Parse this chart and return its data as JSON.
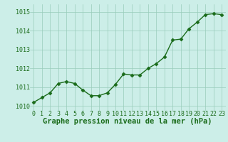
{
  "x": [
    0,
    1,
    2,
    3,
    4,
    5,
    6,
    7,
    8,
    9,
    10,
    11,
    12,
    13,
    14,
    15,
    16,
    17,
    18,
    19,
    20,
    21,
    22,
    23
  ],
  "y": [
    1010.2,
    1010.45,
    1010.7,
    1011.2,
    1011.3,
    1011.2,
    1010.85,
    1010.55,
    1010.55,
    1010.7,
    1011.15,
    1011.7,
    1011.65,
    1011.65,
    1012.0,
    1012.25,
    1012.6,
    1013.5,
    1013.55,
    1014.1,
    1014.45,
    1014.85,
    1014.9,
    1014.85
  ],
  "xlabel": "Graphe pression niveau de la mer (hPa)",
  "ylim": [
    1009.75,
    1015.4
  ],
  "xlim": [
    -0.5,
    23.5
  ],
  "yticks": [
    1010,
    1011,
    1012,
    1013,
    1014,
    1015
  ],
  "xticks": [
    0,
    1,
    2,
    3,
    4,
    5,
    6,
    7,
    8,
    9,
    10,
    11,
    12,
    13,
    14,
    15,
    16,
    17,
    18,
    19,
    20,
    21,
    22,
    23
  ],
  "line_color": "#1a6b1a",
  "marker_color": "#1a6b1a",
  "bg_color": "#cceee8",
  "grid_color": "#99ccbb",
  "label_color": "#1a6b1a",
  "xlabel_fontsize": 7.5,
  "tick_fontsize": 6.0,
  "line_width": 1.0,
  "marker_size": 2.5
}
